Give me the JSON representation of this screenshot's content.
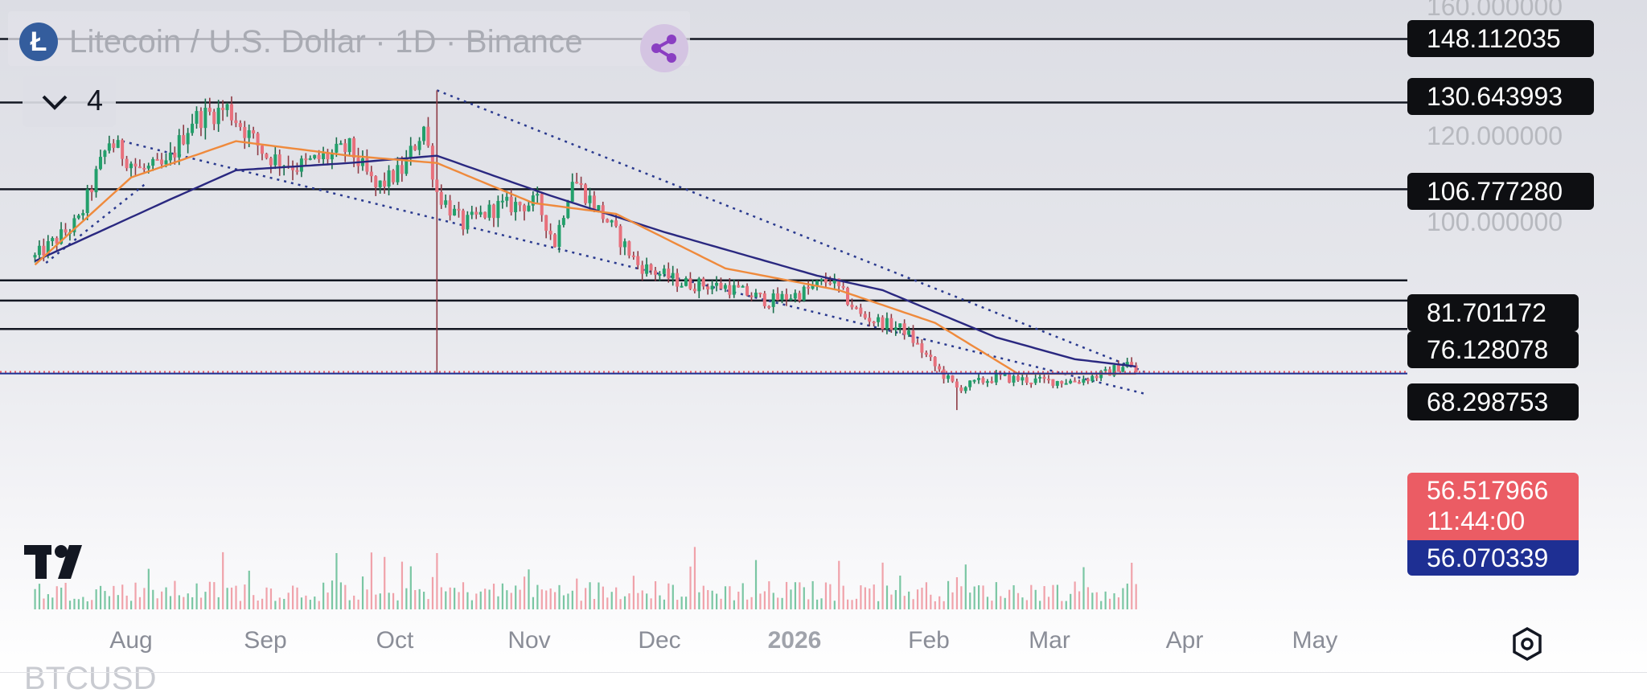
{
  "header": {
    "coin_symbol": "Ł",
    "title": "Litecoin / U.S. Dollar · 1D · Binance",
    "indicator_count": "4"
  },
  "colors": {
    "bullish": "#22a06b",
    "bearish": "#e8707c",
    "ema_fast": "#ef8a3c",
    "ema_slow": "#2a2880",
    "price_line": "#e5535e",
    "ma_line": "#1e2f93"
  },
  "price_scale": {
    "labels": [
      "160.000000",
      "120.000000",
      "100.000000"
    ]
  },
  "horizontal_levels": [
    {
      "label": "148.112035",
      "value": 148.112035
    },
    {
      "label": "130.643993",
      "value": 130.643993
    },
    {
      "label": "106.777280",
      "value": 106.77728
    },
    {
      "label": "81.701172",
      "value": 81.701172
    },
    {
      "label": "76.128078",
      "value": 76.128078
    },
    {
      "label": "68.298753",
      "value": 68.298753
    }
  ],
  "current_price": {
    "label": "56.517966",
    "countdown": "11:44:00",
    "value": 56.517966
  },
  "ma_value": {
    "label": "56.070339",
    "value": 56.070339
  },
  "x_axis": {
    "labels": [
      {
        "text": "Aug",
        "year": false
      },
      {
        "text": "Sep",
        "year": false
      },
      {
        "text": "Oct",
        "year": false
      },
      {
        "text": "Nov",
        "year": false
      },
      {
        "text": "Dec",
        "year": false
      },
      {
        "text": "2026",
        "year": true
      },
      {
        "text": "Feb",
        "year": false
      },
      {
        "text": "Mar",
        "year": false
      },
      {
        "text": "Apr",
        "year": false
      },
      {
        "text": "May",
        "year": false
      }
    ]
  },
  "footer": {
    "cut_text": "BTCUSD"
  },
  "chart_data": {
    "type": "candlestick",
    "symbol": "LTCUSD",
    "timeframe": "1D",
    "exchange": "Binance",
    "x_range": [
      "2025-07-10",
      "2026-05-20"
    ],
    "y_range": [
      46,
      162
    ],
    "anchors": [
      {
        "date": "2025-07-10",
        "close": 88
      },
      {
        "date": "2025-07-20",
        "close": 98
      },
      {
        "date": "2025-07-27",
        "close": 120
      },
      {
        "date": "2025-08-03",
        "close": 112
      },
      {
        "date": "2025-08-09",
        "close": 113
      },
      {
        "date": "2025-08-15",
        "close": 126
      },
      {
        "date": "2025-08-23",
        "close": 129
      },
      {
        "date": "2025-09-01",
        "close": 116
      },
      {
        "date": "2025-09-08",
        "close": 113
      },
      {
        "date": "2025-09-20",
        "close": 118
      },
      {
        "date": "2025-09-26",
        "close": 107
      },
      {
        "date": "2025-10-02",
        "close": 112
      },
      {
        "date": "2025-10-07",
        "close": 124
      },
      {
        "date": "2025-10-10",
        "close": 106
      },
      {
        "date": "2025-10-16",
        "close": 97
      },
      {
        "date": "2025-10-24",
        "close": 102
      },
      {
        "date": "2025-11-02",
        "close": 103
      },
      {
        "date": "2025-11-06",
        "close": 92
      },
      {
        "date": "2025-11-10",
        "close": 110
      },
      {
        "date": "2025-11-18",
        "close": 98
      },
      {
        "date": "2025-11-25",
        "close": 86
      },
      {
        "date": "2025-12-05",
        "close": 81
      },
      {
        "date": "2025-12-15",
        "close": 80
      },
      {
        "date": "2025-12-25",
        "close": 76
      },
      {
        "date": "2026-01-01",
        "close": 78
      },
      {
        "date": "2026-01-08",
        "close": 82
      },
      {
        "date": "2026-01-15",
        "close": 72
      },
      {
        "date": "2026-01-25",
        "close": 68
      },
      {
        "date": "2026-02-01",
        "close": 58
      },
      {
        "date": "2026-02-06",
        "close": 52
      },
      {
        "date": "2026-02-15",
        "close": 55
      },
      {
        "date": "2026-02-25",
        "close": 54
      },
      {
        "date": "2026-03-05",
        "close": 54
      },
      {
        "date": "2026-03-12",
        "close": 56
      },
      {
        "date": "2026-03-17",
        "close": 59
      },
      {
        "date": "2026-03-19",
        "close": 56.5
      }
    ],
    "spikes": [
      {
        "date": "2025-10-10",
        "high": 134,
        "low": 56
      },
      {
        "date": "2026-02-06",
        "low": 46
      }
    ],
    "ema_fast_anchors": [
      {
        "date": "2025-07-10",
        "value": 86
      },
      {
        "date": "2025-08-01",
        "value": 110
      },
      {
        "date": "2025-08-25",
        "value": 120
      },
      {
        "date": "2025-09-20",
        "value": 116
      },
      {
        "date": "2025-10-10",
        "value": 114
      },
      {
        "date": "2025-11-01",
        "value": 103
      },
      {
        "date": "2025-11-20",
        "value": 100
      },
      {
        "date": "2025-12-15",
        "value": 85
      },
      {
        "date": "2026-01-10",
        "value": 79
      },
      {
        "date": "2026-02-01",
        "value": 70
      },
      {
        "date": "2026-02-20",
        "value": 56
      },
      {
        "date": "2026-03-19",
        "value": 56
      }
    ],
    "ema_slow_anchors": [
      {
        "date": "2025-07-10",
        "value": 87
      },
      {
        "date": "2025-08-10",
        "value": 104
      },
      {
        "date": "2025-08-25",
        "value": 112
      },
      {
        "date": "2025-09-20",
        "value": 114
      },
      {
        "date": "2025-10-10",
        "value": 116
      },
      {
        "date": "2025-11-05",
        "value": 105
      },
      {
        "date": "2025-12-01",
        "value": 95
      },
      {
        "date": "2026-01-05",
        "value": 83
      },
      {
        "date": "2026-01-20",
        "value": 79
      },
      {
        "date": "2026-02-15",
        "value": 66
      },
      {
        "date": "2026-03-05",
        "value": 60
      },
      {
        "date": "2026-03-19",
        "value": 58
      }
    ],
    "trendlines": [
      {
        "from": {
          "date": "2025-10-10",
          "value": 134
        },
        "to": {
          "date": "2026-03-21",
          "value": 56.5
        }
      },
      {
        "from": {
          "date": "2025-07-30",
          "value": 120
        },
        "to": {
          "date": "2026-03-21",
          "value": 50.5
        }
      },
      {
        "from": {
          "date": "2025-08-04",
          "value": 108
        },
        "to": {
          "date": "2025-07-12",
          "value": 86
        }
      }
    ],
    "grid": false
  }
}
